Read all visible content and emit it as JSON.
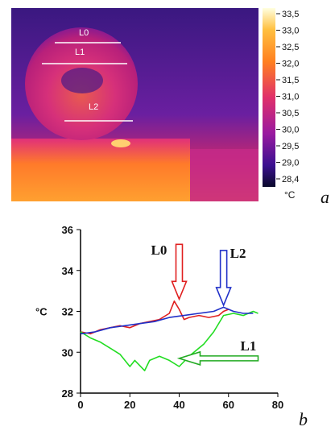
{
  "thermal_image": {
    "line_labels": [
      "L0",
      "L1",
      "L2"
    ],
    "colorbar_ticks": [
      "33,5",
      "33,0",
      "32,5",
      "32,0",
      "31,5",
      "31,0",
      "30,5",
      "30,0",
      "29,5",
      "29,0",
      "28,4"
    ],
    "colorbar_unit": "°C",
    "colors": {
      "hot": "#ffffe0",
      "warm": "#ff9a1a",
      "mid": "#d6207a",
      "cool": "#5a1aa8",
      "cold": "#0a0a2a"
    }
  },
  "panel_labels": {
    "a": "a",
    "b": "b"
  },
  "chart_data": {
    "type": "line",
    "ylabel": "°C",
    "xlabel": "",
    "xlim": [
      0,
      80
    ],
    "ylim": [
      28,
      36
    ],
    "xticks": [
      "0",
      "20",
      "40",
      "60",
      "80"
    ],
    "yticks": [
      "28",
      "30",
      "32",
      "34",
      "36"
    ],
    "series": [
      {
        "name": "L0",
        "color": "#e02020",
        "x": [
          0,
          4,
          8,
          12,
          16,
          20,
          24,
          28,
          32,
          36,
          38,
          40,
          42,
          44,
          48,
          52,
          56,
          58,
          60
        ],
        "y": [
          31.0,
          30.9,
          31.1,
          31.2,
          31.3,
          31.2,
          31.4,
          31.5,
          31.6,
          31.9,
          32.5,
          32.1,
          31.6,
          31.7,
          31.8,
          31.7,
          31.8,
          32.0,
          32.1
        ]
      },
      {
        "name": "L1",
        "color": "#22dd22",
        "x": [
          0,
          4,
          8,
          12,
          16,
          20,
          22,
          26,
          28,
          32,
          36,
          40,
          44,
          50,
          54,
          58,
          62,
          66,
          70,
          72
        ],
        "y": [
          31.0,
          30.7,
          30.5,
          30.2,
          29.9,
          29.3,
          29.6,
          29.1,
          29.6,
          29.8,
          29.6,
          29.3,
          29.8,
          30.4,
          31.0,
          31.8,
          31.9,
          31.8,
          32.0,
          31.9
        ]
      },
      {
        "name": "L2",
        "color": "#2030c8",
        "x": [
          0,
          6,
          12,
          18,
          24,
          30,
          36,
          42,
          48,
          54,
          58,
          62,
          66,
          70
        ],
        "y": [
          30.9,
          31.0,
          31.2,
          31.3,
          31.4,
          31.5,
          31.7,
          31.8,
          31.9,
          32.0,
          32.2,
          32.0,
          31.9,
          31.9
        ]
      }
    ],
    "annotations": [
      {
        "text": "L0",
        "arrow_x": 40,
        "arrow_y": 32.6,
        "color": "#e02020"
      },
      {
        "text": "L2",
        "arrow_x": 58,
        "arrow_y": 32.3,
        "color": "#2030c8"
      },
      {
        "text": "L1",
        "arrow_x": 40,
        "arrow_y": 29.7,
        "color": "#22aa22"
      }
    ]
  }
}
